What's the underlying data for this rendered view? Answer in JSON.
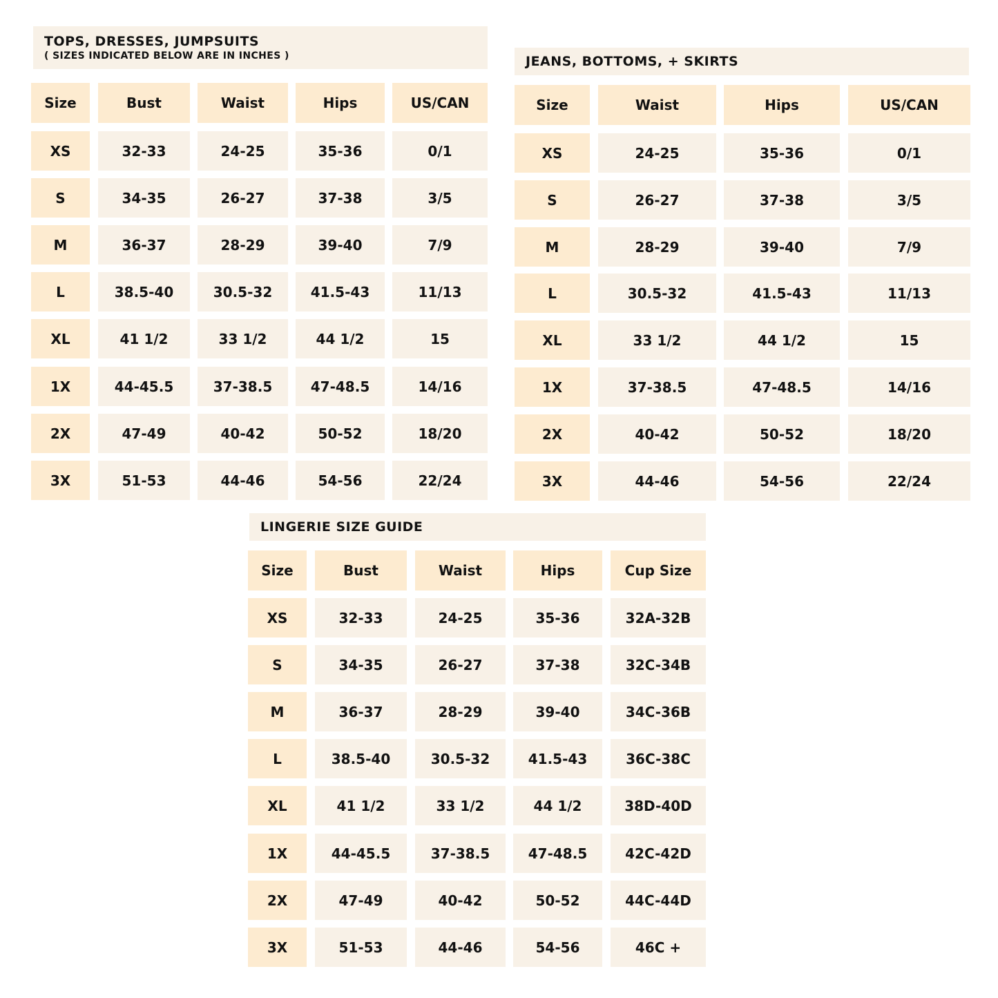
{
  "colors": {
    "header": "#fdebd0",
    "cell": "#f8f1e7",
    "text": "#111111"
  },
  "tables": [
    {
      "title": "TOPS, DRESSES, JUMPSUITS",
      "subtitle": "( SIZES INDICATED BELOW ARE IN INCHES )",
      "headers": [
        "Size",
        "Bust",
        "Waist",
        "Hips",
        "US/CAN"
      ],
      "rows": [
        [
          "XS",
          "32-33",
          "24-25",
          "35-36",
          "0/1"
        ],
        [
          "S",
          "34-35",
          "26-27",
          "37-38",
          "3/5"
        ],
        [
          "M",
          "36-37",
          "28-29",
          "39-40",
          "7/9"
        ],
        [
          "L",
          "38.5-40",
          "30.5-32",
          "41.5-43",
          "11/13"
        ],
        [
          "XL",
          "41 1/2",
          "33 1/2",
          "44 1/2",
          "15"
        ],
        [
          "1X",
          "44-45.5",
          "37-38.5",
          "47-48.5",
          "14/16"
        ],
        [
          "2X",
          "47-49",
          "40-42",
          "50-52",
          "18/20"
        ],
        [
          "3X",
          "51-53",
          "44-46",
          "54-56",
          "22/24"
        ]
      ]
    },
    {
      "title": "JEANS, BOTTOMS, + SKIRTS",
      "headers": [
        "Size",
        "Waist",
        "Hips",
        "US/CAN"
      ],
      "rows": [
        [
          "XS",
          "24-25",
          "35-36",
          "0/1"
        ],
        [
          "S",
          "26-27",
          "37-38",
          "3/5"
        ],
        [
          "M",
          "28-29",
          "39-40",
          "7/9"
        ],
        [
          "L",
          "30.5-32",
          "41.5-43",
          "11/13"
        ],
        [
          "XL",
          "33 1/2",
          "44 1/2",
          "15"
        ],
        [
          "1X",
          "37-38.5",
          "47-48.5",
          "14/16"
        ],
        [
          "2X",
          "40-42",
          "50-52",
          "18/20"
        ],
        [
          "3X",
          "44-46",
          "54-56",
          "22/24"
        ]
      ]
    },
    {
      "title": "LINGERIE SIZE GUIDE",
      "headers": [
        "Size",
        "Bust",
        "Waist",
        "Hips",
        "Cup Size"
      ],
      "rows": [
        [
          "XS",
          "32-33",
          "24-25",
          "35-36",
          "32A-32B"
        ],
        [
          "S",
          "34-35",
          "26-27",
          "37-38",
          "32C-34B"
        ],
        [
          "M",
          "36-37",
          "28-29",
          "39-40",
          "34C-36B"
        ],
        [
          "L",
          "38.5-40",
          "30.5-32",
          "41.5-43",
          "36C-38C"
        ],
        [
          "XL",
          "41 1/2",
          "33 1/2",
          "44 1/2",
          "38D-40D"
        ],
        [
          "1X",
          "44-45.5",
          "37-38.5",
          "47-48.5",
          "42C-42D"
        ],
        [
          "2X",
          "47-49",
          "40-42",
          "50-52",
          "44C-44D"
        ],
        [
          "3X",
          "51-53",
          "44-46",
          "54-56",
          "46C +"
        ]
      ]
    }
  ]
}
